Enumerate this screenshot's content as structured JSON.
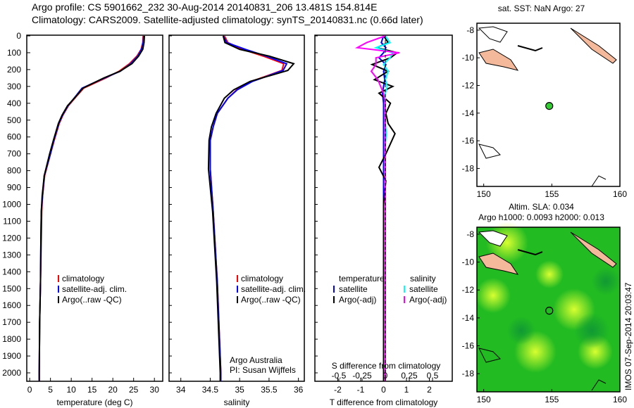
{
  "title": {
    "line1": "Argo profile: CS 5901662_232 30-Aug-2014 20140831_206 13.481S 154.814E",
    "line2": "Climatology: CARS2009. Satellite-adjusted climatology: synTS_20140831.nc (0.66d later)"
  },
  "colors": {
    "climatology": "#ff0000",
    "satellite": "#0000ff",
    "argo": "#000000",
    "sal_sat": "#00ffff",
    "sal_argo": "#ff00ff",
    "ocean": "#22bb22",
    "land": "#f4b89a",
    "marker": "#33cc33"
  },
  "chart_data": [
    {
      "type": "line",
      "id": "temperature",
      "xlabel": "temperature (deg C)",
      "ylabel": "",
      "xlim": [
        -0.7,
        32
      ],
      "ylim": [
        2050,
        0
      ],
      "xticks": [
        0,
        5,
        10,
        15,
        20,
        25,
        30
      ],
      "yticks": [
        0,
        100,
        200,
        300,
        400,
        500,
        600,
        700,
        800,
        900,
        1000,
        1100,
        1200,
        1300,
        1400,
        1500,
        1600,
        1700,
        1800,
        1900,
        2000
      ],
      "depth": [
        0,
        40,
        80,
        120,
        165,
        210,
        250,
        310,
        360,
        415,
        470,
        520,
        620,
        700,
        830,
        950,
        1040,
        1200,
        1460,
        1700,
        2000,
        2050
      ],
      "series": [
        {
          "name": "climatology",
          "values": [
            27.3,
            27.2,
            26.8,
            25.8,
            24.0,
            21.5,
            18.3,
            13.0,
            11.2,
            9.3,
            8.0,
            7.1,
            5.9,
            5.0,
            3.6,
            3.1,
            2.9,
            2.8,
            2.6,
            2.4,
            2.3,
            2.3
          ]
        },
        {
          "name": "satellite-adj. clim.",
          "values": [
            27.4,
            27.3,
            26.9,
            26.0,
            24.3,
            21.8,
            18.0,
            12.6,
            11.0,
            9.2,
            7.9,
            7.0,
            5.8,
            5.0,
            3.5,
            3.1,
            2.8,
            2.7,
            2.6,
            2.4,
            2.3,
            2.3
          ]
        },
        {
          "name": "Argo(..raw -QC)",
          "values": [
            27.6,
            27.5,
            27.2,
            26.2,
            24.6,
            21.7,
            17.8,
            12.8,
            11.1,
            9.1,
            7.8,
            6.9,
            5.7,
            4.8,
            3.5,
            3.0,
            2.8,
            2.7,
            2.6,
            2.4,
            2.3,
            2.3
          ]
        }
      ],
      "legend": [
        "climatology",
        "satellite-adj. clim.",
        "Argo(..raw -QC)"
      ]
    },
    {
      "type": "line",
      "id": "salinity",
      "xlabel": "salinity",
      "xlim": [
        33.8,
        36.1
      ],
      "ylim": [
        2050,
        0
      ],
      "xticks": [
        34,
        34.5,
        35,
        35.5,
        36
      ],
      "depth": [
        0,
        40,
        80,
        120,
        165,
        205,
        270,
        320,
        370,
        460,
        540,
        620,
        790,
        1040,
        1460,
        2000,
        2050
      ],
      "series": [
        {
          "name": "climatology",
          "values": [
            34.74,
            34.8,
            35.05,
            35.4,
            35.75,
            35.72,
            35.2,
            34.95,
            34.8,
            34.62,
            34.55,
            34.5,
            34.5,
            34.55,
            34.62,
            34.68,
            34.68
          ]
        },
        {
          "name": "satellite-adj. clim.",
          "values": [
            34.72,
            34.78,
            35.1,
            35.45,
            35.8,
            35.74,
            35.22,
            34.96,
            34.8,
            34.62,
            34.55,
            34.5,
            34.5,
            34.55,
            34.62,
            34.68,
            34.68
          ]
        },
        {
          "name": "Argo(..raw -QC)",
          "values": [
            34.72,
            34.75,
            35.0,
            35.5,
            35.92,
            35.82,
            35.18,
            34.9,
            34.74,
            34.6,
            34.52,
            34.48,
            34.47,
            34.54,
            34.61,
            34.67,
            34.67
          ]
        }
      ],
      "legend": [
        "climatology",
        "satellite-adj. clim.",
        "Argo(..raw -QC)"
      ],
      "note": [
        "Argo Australia",
        "PI: Susan Wijffels"
      ]
    },
    {
      "type": "line",
      "id": "difference",
      "xlabel": "T difference from climatology",
      "x2label": "S difference from climatology",
      "xlim": [
        -3,
        3
      ],
      "ylim": [
        2050,
        0
      ],
      "xticks": [
        -2,
        -1,
        0,
        1,
        2
      ],
      "x2ticks": [
        "-0.5",
        "-0.25",
        "0",
        "0.25",
        "0.5"
      ],
      "depth": [
        0,
        40,
        70,
        100,
        130,
        170,
        210,
        260,
        300,
        340,
        400,
        460,
        520,
        580,
        640,
        700,
        780,
        860,
        1000,
        1400,
        2000,
        2050
      ],
      "series": [
        {
          "name": "temperature satellite",
          "values": [
            0,
            -0.1,
            0.1,
            0,
            -0.2,
            0.1,
            0,
            0.05,
            0,
            -0.05,
            0,
            0,
            0,
            0,
            0,
            0,
            0,
            0,
            0,
            0,
            0,
            0
          ]
        },
        {
          "name": "temperature Argo(-adj)",
          "values": [
            0,
            0.2,
            -0.3,
            0.6,
            0.3,
            -0.5,
            0.2,
            -0.4,
            0.4,
            -0.2,
            0.3,
            0.1,
            0.2,
            0.5,
            0.3,
            0.1,
            -0.2,
            0.1,
            0,
            0,
            0,
            0
          ]
        },
        {
          "name": "salinity satellite",
          "values": [
            0,
            0.05,
            -0.1,
            0.08,
            0.05,
            -0.02,
            0.03,
            0,
            0.02,
            0,
            0,
            0,
            0,
            0.01,
            0,
            0,
            0,
            0,
            0,
            0,
            0,
            0
          ]
        },
        {
          "name": "salinity Argo(-adj)",
          "values": [
            0,
            -0.2,
            -0.3,
            0.15,
            -0.1,
            -0.1,
            -0.15,
            -0.08,
            -0.05,
            -0.02,
            0,
            0,
            0,
            0,
            0,
            0,
            0,
            0,
            0,
            0,
            0,
            0
          ]
        }
      ],
      "legend_headers": [
        "temperature",
        "salinity"
      ],
      "legend": [
        "satellite",
        "Argo(-adj)",
        "satellite",
        "Argo(-adj)"
      ]
    },
    {
      "type": "map",
      "id": "sst-map",
      "title": "sat. SST: NaN Argo: 27",
      "xlim": [
        149.5,
        160
      ],
      "ylim": [
        -19.3,
        -7.5
      ],
      "xticks": [
        150,
        155,
        160
      ],
      "yticks": [
        -8,
        -10,
        -12,
        -14,
        -16,
        -18
      ],
      "argo_position": [
        154.814,
        -13.481
      ]
    },
    {
      "type": "map",
      "id": "sla-map",
      "title": "Altim. SLA: 0.034",
      "subtitle": "Argo h1000: 0.0093 h2000: 0.013",
      "xlim": [
        149.5,
        160
      ],
      "ylim": [
        -19.3,
        -7.5
      ],
      "xticks": [
        150,
        155,
        160
      ],
      "yticks": [
        -8,
        -10,
        -12,
        -14,
        -16,
        -18
      ],
      "argo_position": [
        154.814,
        -13.481
      ]
    }
  ],
  "stamp": "IMOS 07-Sep-2014 20:03:47"
}
